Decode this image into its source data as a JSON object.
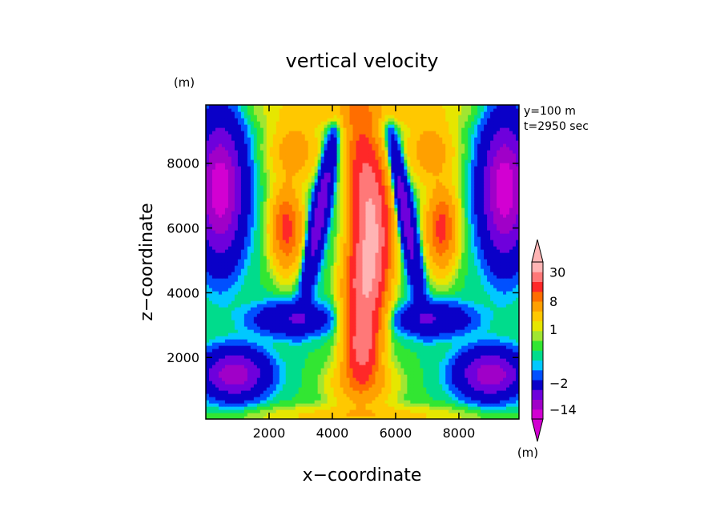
{
  "chart_data": {
    "type": "heatmap",
    "title": "vertical velocity",
    "xlabel": "x−coordinate",
    "ylabel": "z−coordinate",
    "x_unit": "(m)",
    "y_unit": "(m)",
    "annotations": [
      "y=100 m",
      "t=2950 sec"
    ],
    "xlim": [
      0,
      9900
    ],
    "ylim": [
      100,
      9800
    ],
    "x_ticks": [
      {
        "value": 2000,
        "label": "2000"
      },
      {
        "value": 4000,
        "label": "4000"
      },
      {
        "value": 6000,
        "label": "6000"
      },
      {
        "value": 8000,
        "label": "8000"
      }
    ],
    "y_ticks": [
      {
        "value": 2000,
        "label": "2000"
      },
      {
        "value": 4000,
        "label": "4000"
      },
      {
        "value": 6000,
        "label": "6000"
      },
      {
        "value": 8000,
        "label": "8000"
      }
    ],
    "grid": false,
    "colorbar": {
      "unit": "(m)",
      "labels": [
        {
          "level": 30,
          "text": "30"
        },
        {
          "level": 8,
          "text": "8"
        },
        {
          "level": 1,
          "text": "1"
        },
        {
          "level": -2,
          "text": "−2"
        },
        {
          "level": -14,
          "text": "−14"
        }
      ],
      "colors": [
        "#d200d2",
        "#a000c8",
        "#6e00dc",
        "#0a00c8",
        "#0050ff",
        "#00c8ff",
        "#00dc8c",
        "#32e632",
        "#a0e632",
        "#e6e600",
        "#ffc800",
        "#ffa000",
        "#ff6e00",
        "#ff2828",
        "#ff7878",
        "#ffb4b4"
      ]
    },
    "contour_levels": [
      -14,
      -10,
      -6,
      -2,
      -1,
      -0.5,
      0,
      0.5,
      1,
      2,
      4,
      8,
      12,
      20,
      30
    ],
    "features": [
      {
        "name": "central updraft",
        "x": 4950,
        "z": 6800,
        "w": 30
      },
      {
        "name": "central updraft lower core",
        "x": 4950,
        "z": 2400,
        "w": 20
      },
      {
        "name": "left updraft core",
        "x": 2550,
        "z": 6000,
        "w": 12
      },
      {
        "name": "right updraft core",
        "x": 7450,
        "z": 6000,
        "w": 12
      },
      {
        "name": "left downdraft edge",
        "x": 500,
        "z": 7000,
        "w": -14
      },
      {
        "name": "right downdraft edge",
        "x": 9500,
        "z": 7000,
        "w": -14
      },
      {
        "name": "left lower downdraft",
        "x": 600,
        "z": 1500,
        "w": -12
      },
      {
        "name": "right lower downdraft",
        "x": 9300,
        "z": 1500,
        "w": -12
      }
    ]
  }
}
